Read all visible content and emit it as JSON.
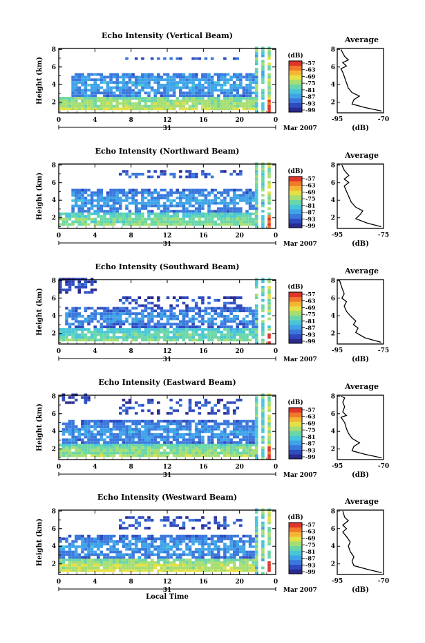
{
  "chart_data": [
    {
      "type": "heatmap",
      "title": "Echo Intensity (Vertical Beam)",
      "ylabel": "Height (km)",
      "y_ticks": [
        "2",
        "4",
        "6",
        "8"
      ],
      "x_ticks": [
        "0",
        "4",
        "8",
        "12",
        "16",
        "20",
        "0"
      ],
      "date_label": "31",
      "month_label": "Mar 2007",
      "ylim": [
        0.8,
        8.1
      ],
      "xlim": [
        0,
        24
      ],
      "colorbar": {
        "unit": "(dB)",
        "ticks": [
          "-57",
          "-63",
          "-69",
          "-75",
          "-81",
          "-87",
          "-93",
          "-99"
        ]
      },
      "layers": [
        {
          "top": 7.0,
          "bottom": 6.5,
          "x_start": 6.6,
          "x_end": 20.3,
          "intensity": 0.08,
          "coverage": 0.45
        },
        {
          "top": 5.2,
          "bottom": 2.5,
          "x_start": 1.2,
          "x_end": 22,
          "intensity": 0.22,
          "coverage": 0.8
        },
        {
          "top": 2.5,
          "bottom": 1.0,
          "x_start": 0,
          "x_end": 22,
          "intensity": 0.48,
          "coverage": 0.95
        }
      ],
      "average_profile": {
        "title": "Average",
        "xlabel": "(dB)",
        "x_ticks": [
          "-95",
          "-70"
        ],
        "y_ticks": [
          "2",
          "4",
          "6",
          "8"
        ],
        "xlim": [
          -95,
          -70
        ],
        "ylim": [
          0.8,
          8.1
        ],
        "points": [
          [
            -71,
            1.0
          ],
          [
            -80,
            1.4
          ],
          [
            -87,
            1.8
          ],
          [
            -86,
            2.3
          ],
          [
            -83,
            2.7
          ],
          [
            -87,
            3.1
          ],
          [
            -89,
            3.6
          ],
          [
            -90,
            4.2
          ],
          [
            -91,
            4.8
          ],
          [
            -92,
            5.4
          ],
          [
            -93,
            5.8
          ],
          [
            -90,
            6.1
          ],
          [
            -92,
            6.5
          ],
          [
            -89,
            6.8
          ],
          [
            -91,
            7.2
          ],
          [
            -92,
            7.6
          ],
          [
            -93,
            8.0
          ]
        ]
      }
    },
    {
      "type": "heatmap",
      "title": "Echo Intensity (Northward Beam)",
      "ylabel": "Height (km)",
      "y_ticks": [
        "2",
        "4",
        "6",
        "8"
      ],
      "x_ticks": [
        "0",
        "4",
        "8",
        "12",
        "16",
        "20",
        "0"
      ],
      "date_label": "31",
      "month_label": "Mar 2007",
      "ylim": [
        0.8,
        8.1
      ],
      "xlim": [
        0,
        24
      ],
      "colorbar": {
        "unit": "(dB)",
        "ticks": [
          "-57",
          "-63",
          "-69",
          "-75",
          "-81",
          "-87",
          "-93",
          "-99"
        ]
      },
      "layers": [
        {
          "top": 7.2,
          "bottom": 6.2,
          "x_start": 6.6,
          "x_end": 20.3,
          "intensity": 0.1,
          "coverage": 0.4
        },
        {
          "top": 5.1,
          "bottom": 2.4,
          "x_start": 1.2,
          "x_end": 22,
          "intensity": 0.2,
          "coverage": 0.75
        },
        {
          "top": 2.4,
          "bottom": 1.0,
          "x_start": 0,
          "x_end": 22,
          "intensity": 0.4,
          "coverage": 0.9
        }
      ],
      "average_profile": {
        "title": "Average",
        "xlabel": "(dB)",
        "x_ticks": [
          "-95",
          "-75"
        ],
        "y_ticks": [
          "2",
          "4",
          "6",
          "8"
        ],
        "xlim": [
          -95,
          -75
        ],
        "ylim": [
          0.8,
          8.1
        ],
        "points": [
          [
            -76,
            1.0
          ],
          [
            -82,
            1.4
          ],
          [
            -87,
            1.9
          ],
          [
            -85,
            2.4
          ],
          [
            -84,
            2.8
          ],
          [
            -87,
            3.2
          ],
          [
            -89,
            3.8
          ],
          [
            -90,
            4.4
          ],
          [
            -91,
            5.0
          ],
          [
            -92,
            5.6
          ],
          [
            -90,
            6.0
          ],
          [
            -92,
            6.4
          ],
          [
            -90,
            6.8
          ],
          [
            -92,
            7.4
          ],
          [
            -93,
            8.0
          ]
        ]
      }
    },
    {
      "type": "heatmap",
      "title": "Echo Intensity (Southward Beam)",
      "ylabel": "Height (km)",
      "y_ticks": [
        "2",
        "4",
        "6",
        "8"
      ],
      "x_ticks": [
        "0",
        "4",
        "8",
        "12",
        "16",
        "20",
        "0"
      ],
      "date_label": "31",
      "month_label": "Mar 2007",
      "ylim": [
        0.8,
        8.1
      ],
      "xlim": [
        0,
        24
      ],
      "colorbar": {
        "unit": "(dB)",
        "ticks": [
          "-57",
          "-63",
          "-69",
          "-75",
          "-81",
          "-87",
          "-93",
          "-99"
        ]
      },
      "layers": [
        {
          "top": 8.1,
          "bottom": 6.3,
          "x_start": 0,
          "x_end": 4,
          "intensity": 0.04,
          "coverage": 0.55
        },
        {
          "top": 6.0,
          "bottom": 4.8,
          "x_start": 6.6,
          "x_end": 20.3,
          "intensity": 0.08,
          "coverage": 0.35
        },
        {
          "top": 4.7,
          "bottom": 2.5,
          "x_start": 0.5,
          "x_end": 22,
          "intensity": 0.18,
          "coverage": 0.7
        },
        {
          "top": 2.5,
          "bottom": 1.0,
          "x_start": 0,
          "x_end": 22,
          "intensity": 0.38,
          "coverage": 0.9
        }
      ],
      "average_profile": {
        "title": "Average",
        "xlabel": "(dB)",
        "x_ticks": [
          "-95",
          "-75"
        ],
        "y_ticks": [
          "2",
          "4",
          "6",
          "8"
        ],
        "xlim": [
          -95,
          -75
        ],
        "ylim": [
          0.8,
          8.1
        ],
        "points": [
          [
            -76,
            1.0
          ],
          [
            -83,
            1.5
          ],
          [
            -87,
            2.1
          ],
          [
            -86,
            2.6
          ],
          [
            -88,
            3.0
          ],
          [
            -87,
            3.4
          ],
          [
            -89,
            3.9
          ],
          [
            -91,
            4.5
          ],
          [
            -92,
            5.1
          ],
          [
            -91,
            5.6
          ],
          [
            -93,
            6.0
          ],
          [
            -92,
            6.5
          ],
          [
            -93,
            7.2
          ],
          [
            -94,
            8.0
          ]
        ]
      }
    },
    {
      "type": "heatmap",
      "title": "Echo Intensity (Eastward Beam)",
      "ylabel": "Height (km)",
      "y_ticks": [
        "2",
        "4",
        "6",
        "8"
      ],
      "x_ticks": [
        "0",
        "4",
        "8",
        "12",
        "16",
        "20",
        "0"
      ],
      "date_label": "31",
      "month_label": "Mar 2007",
      "ylim": [
        0.8,
        8.1
      ],
      "xlim": [
        0,
        24
      ],
      "colorbar": {
        "unit": "(dB)",
        "ticks": [
          "-57",
          "-63",
          "-69",
          "-75",
          "-81",
          "-87",
          "-93",
          "-99"
        ]
      },
      "layers": [
        {
          "top": 8.1,
          "bottom": 7.0,
          "x_start": 0,
          "x_end": 3.5,
          "intensity": 0.04,
          "coverage": 0.5
        },
        {
          "top": 7.4,
          "bottom": 5.8,
          "x_start": 6.6,
          "x_end": 20.3,
          "intensity": 0.08,
          "coverage": 0.4
        },
        {
          "top": 5.0,
          "bottom": 2.5,
          "x_start": 0.3,
          "x_end": 22,
          "intensity": 0.2,
          "coverage": 0.8
        },
        {
          "top": 2.5,
          "bottom": 1.0,
          "x_start": 0,
          "x_end": 22,
          "intensity": 0.44,
          "coverage": 0.95
        }
      ],
      "average_profile": {
        "title": "Average",
        "xlabel": "(dB)",
        "x_ticks": [
          "-95",
          "-70"
        ],
        "y_ticks": [
          "2",
          "4",
          "6",
          "8"
        ],
        "xlim": [
          -95,
          -70
        ],
        "ylim": [
          0.8,
          8.1
        ],
        "points": [
          [
            -71,
            1.0
          ],
          [
            -80,
            1.4
          ],
          [
            -87,
            1.8
          ],
          [
            -86,
            2.3
          ],
          [
            -83,
            2.7
          ],
          [
            -87,
            3.2
          ],
          [
            -89,
            3.8
          ],
          [
            -90,
            4.3
          ],
          [
            -91,
            5.0
          ],
          [
            -93,
            5.6
          ],
          [
            -90,
            5.8
          ],
          [
            -92,
            6.2
          ],
          [
            -91,
            6.8
          ],
          [
            -92,
            7.3
          ],
          [
            -91,
            7.8
          ],
          [
            -93,
            8.0
          ]
        ]
      }
    },
    {
      "type": "heatmap",
      "title": "Echo Intensity (Westward Beam)",
      "ylabel": "Height (km)",
      "y_ticks": [
        "2",
        "4",
        "6",
        "8"
      ],
      "x_ticks": [
        "0",
        "4",
        "8",
        "12",
        "16",
        "20",
        "0"
      ],
      "date_label": "31",
      "month_label": "Mar 2007",
      "xlabel": "Local Time",
      "ylim": [
        0.8,
        8.1
      ],
      "xlim": [
        0,
        24
      ],
      "colorbar": {
        "unit": "(dB)",
        "ticks": [
          "-57",
          "-63",
          "-69",
          "-75",
          "-81",
          "-87",
          "-93",
          "-99"
        ]
      },
      "layers": [
        {
          "top": 7.2,
          "bottom": 5.8,
          "x_start": 6.6,
          "x_end": 20.3,
          "intensity": 0.08,
          "coverage": 0.35
        },
        {
          "top": 5.0,
          "bottom": 2.4,
          "x_start": 0,
          "x_end": 22,
          "intensity": 0.2,
          "coverage": 0.75
        },
        {
          "top": 2.4,
          "bottom": 1.0,
          "x_start": 0,
          "x_end": 22,
          "intensity": 0.5,
          "coverage": 0.95
        }
      ],
      "average_profile": {
        "title": "Average",
        "xlabel": "(dB)",
        "x_ticks": [
          "-95",
          "-70"
        ],
        "y_ticks": [
          "2",
          "4",
          "6",
          "8"
        ],
        "xlim": [
          -95,
          -70
        ],
        "ylim": [
          0.8,
          8.1
        ],
        "points": [
          [
            -71,
            1.0
          ],
          [
            -79,
            1.4
          ],
          [
            -86,
            1.8
          ],
          [
            -87,
            2.3
          ],
          [
            -86,
            2.8
          ],
          [
            -88,
            3.4
          ],
          [
            -89,
            4.0
          ],
          [
            -88,
            4.5
          ],
          [
            -90,
            5.1
          ],
          [
            -92,
            5.6
          ],
          [
            -90,
            6.0
          ],
          [
            -92,
            6.4
          ],
          [
            -89,
            6.9
          ],
          [
            -91,
            7.3
          ],
          [
            -92,
            8.0
          ]
        ]
      }
    }
  ],
  "colormap": [
    "#2b2a8f",
    "#2f4bbf",
    "#3a78dc",
    "#3fa3e8",
    "#48c6d8",
    "#6ad6a8",
    "#a6de72",
    "#e4e046",
    "#f5b534",
    "#f07a2a",
    "#e0352a"
  ]
}
